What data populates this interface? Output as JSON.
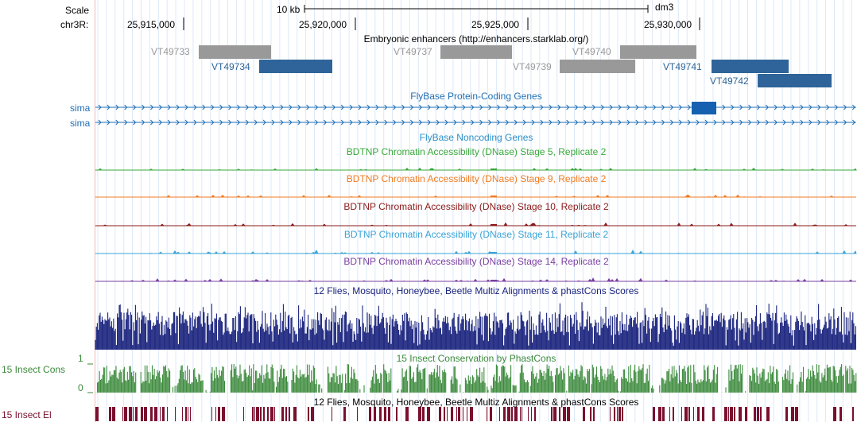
{
  "ruler": {
    "scale_label": "Scale",
    "chrom_label": "chr3R:",
    "scale_bar_label": "10 kb",
    "assembly": "dm3",
    "ticks": [
      "25,915,000",
      "25,920,000",
      "25,925,000",
      "25,930,000"
    ]
  },
  "enhancers": {
    "title": "Embryonic enhancers (http://enhancers.starklab.org/)",
    "items": [
      {
        "name": "VT49733",
        "color": "#999999"
      },
      {
        "name": "VT49734",
        "color": "#2e6499"
      },
      {
        "name": "VT49737",
        "color": "#999999"
      },
      {
        "name": "VT49739",
        "color": "#999999"
      },
      {
        "name": "VT49740",
        "color": "#999999"
      },
      {
        "name": "VT49741",
        "color": "#2e6499"
      },
      {
        "name": "VT49742",
        "color": "#2e6499"
      }
    ]
  },
  "genes": {
    "title": "FlyBase Protein-Coding Genes",
    "gene1": "sima",
    "gene2": "sima",
    "color": "#1f6fb4"
  },
  "noncoding": {
    "title": "FlyBase Noncoding Genes",
    "color": "#2b8fc8"
  },
  "dnase": [
    {
      "title": "BDTNP Chromatin Accessibility (DNase) Stage 5, Replicate 2",
      "color": "#38a83a"
    },
    {
      "title": "BDTNP Chromatin Accessibility (DNase) Stage 9, Replicate 2",
      "color": "#f07b22"
    },
    {
      "title": "BDTNP Chromatin Accessibility (DNase) Stage 10, Replicate 2",
      "color": "#8b1a1a"
    },
    {
      "title": "BDTNP Chromatin Accessibility (DNase) Stage 11, Replicate 2",
      "color": "#3aa3d6"
    },
    {
      "title": "BDTNP Chromatin Accessibility (DNase) Stage 14, Replicate 2",
      "color": "#7a3fa1"
    }
  ],
  "multiz": {
    "title": "12 Flies, Mosquito, Honeybee, Beetle Multiz Alignments & phastCons Scores",
    "color": "#1a237e"
  },
  "phastcons": {
    "title": "15 Insect Conservation by PhastCons",
    "side_label": "15 Insect Cons",
    "scale_max": "1",
    "scale_min": "0",
    "color": "#3c8a3c"
  },
  "elements": {
    "title": "12 Flies, Mosquito, Honeybee, Beetle Multiz Alignments & phastCons Scores",
    "side_label": "15 Insect El",
    "color": "#7a0f2e"
  }
}
